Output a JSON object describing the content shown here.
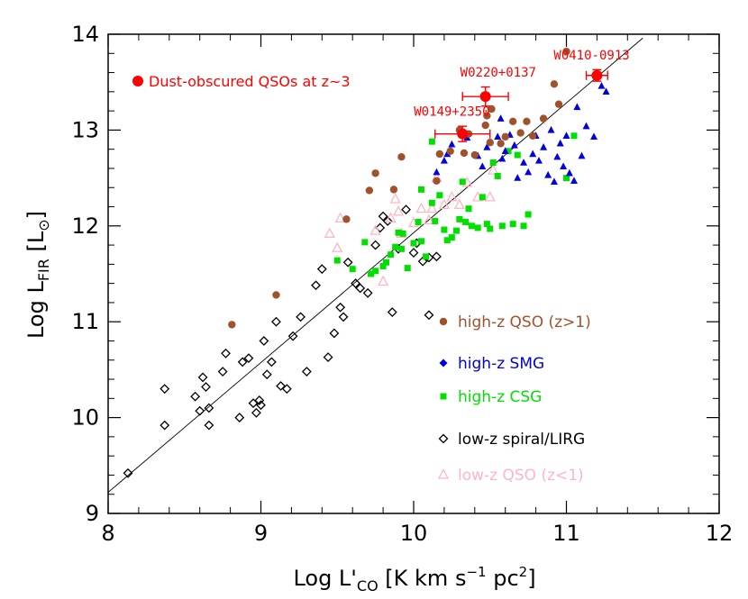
{
  "chart_data": {
    "type": "scatter",
    "xlabel": "Log L'CO [K km s-1 pc2]",
    "ylabel": "Log LFIR [L⊙]",
    "xlim": [
      8,
      12
    ],
    "ylim": [
      9,
      14
    ],
    "xticks": [
      8,
      9,
      10,
      11,
      12
    ],
    "yticks": [
      9,
      10,
      11,
      12,
      13,
      14
    ],
    "grid": false,
    "fit_line": {
      "x": [
        8,
        11.5
      ],
      "y": [
        9.22,
        13.96
      ]
    },
    "series": [
      {
        "name": "high-z QSO (z>1)",
        "marker": "circle",
        "color": "#a0522d",
        "points": [
          [
            8.81,
            10.97
          ],
          [
            9.1,
            11.28
          ],
          [
            9.56,
            12.07
          ],
          [
            9.71,
            12.37
          ],
          [
            9.75,
            12.55
          ],
          [
            9.87,
            12.38
          ],
          [
            9.92,
            12.72
          ],
          [
            10.15,
            12.47
          ],
          [
            10.17,
            12.75
          ],
          [
            10.24,
            12.78
          ],
          [
            10.3,
            13.0
          ],
          [
            10.33,
            12.76
          ],
          [
            10.36,
            12.96
          ],
          [
            10.4,
            12.74
          ],
          [
            10.47,
            13.05
          ],
          [
            10.48,
            13.15
          ],
          [
            10.5,
            12.87
          ],
          [
            10.51,
            13.22
          ],
          [
            10.57,
            12.86
          ],
          [
            10.6,
            12.93
          ],
          [
            10.65,
            13.09
          ],
          [
            10.7,
            12.97
          ],
          [
            10.74,
            13.09
          ],
          [
            10.78,
            12.94
          ],
          [
            10.85,
            13.12
          ],
          [
            10.92,
            13.48
          ],
          [
            10.95,
            13.27
          ],
          [
            11.0,
            13.82
          ],
          [
            11.2,
            13.55
          ]
        ]
      },
      {
        "name": "high-z SMG",
        "marker": "triangle",
        "color": "#0000e0",
        "points": [
          [
            10.15,
            12.56
          ],
          [
            10.2,
            12.68
          ],
          [
            10.22,
            12.75
          ],
          [
            10.25,
            12.85
          ],
          [
            10.35,
            12.92
          ],
          [
            10.42,
            12.73
          ],
          [
            10.45,
            12.62
          ],
          [
            10.48,
            12.82
          ],
          [
            10.55,
            12.93
          ],
          [
            10.58,
            12.7
          ],
          [
            10.6,
            12.78
          ],
          [
            10.63,
            12.95
          ],
          [
            10.66,
            12.84
          ],
          [
            10.68,
            12.5
          ],
          [
            10.72,
            12.66
          ],
          [
            10.75,
            12.56
          ],
          [
            10.78,
            12.75
          ],
          [
            10.8,
            12.94
          ],
          [
            10.82,
            12.68
          ],
          [
            10.85,
            12.82
          ],
          [
            10.88,
            12.53
          ],
          [
            10.9,
            13.0
          ],
          [
            10.92,
            12.46
          ],
          [
            10.94,
            12.72
          ],
          [
            10.96,
            12.86
          ],
          [
            10.98,
            12.62
          ],
          [
            11.0,
            12.94
          ],
          [
            11.02,
            12.55
          ],
          [
            11.05,
            12.47
          ],
          [
            11.07,
            13.24
          ],
          [
            11.1,
            12.73
          ],
          [
            11.13,
            13.04
          ],
          [
            11.18,
            12.93
          ],
          [
            11.23,
            13.46
          ],
          [
            11.26,
            13.4
          ],
          [
            10.57,
            13.12
          ]
        ]
      },
      {
        "name": "high-z CSG",
        "marker": "square",
        "color": "#00e000",
        "points": [
          [
            9.5,
            11.64
          ],
          [
            9.6,
            11.55
          ],
          [
            9.68,
            11.83
          ],
          [
            9.72,
            11.5
          ],
          [
            9.75,
            11.53
          ],
          [
            9.8,
            11.58
          ],
          [
            9.82,
            11.62
          ],
          [
            9.85,
            11.7
          ],
          [
            9.88,
            11.78
          ],
          [
            9.9,
            11.93
          ],
          [
            9.92,
            11.76
          ],
          [
            9.96,
            11.56
          ],
          [
            10.0,
            11.82
          ],
          [
            10.03,
            12.04
          ],
          [
            10.05,
            11.84
          ],
          [
            10.08,
            11.68
          ],
          [
            10.12,
            12.24
          ],
          [
            10.14,
            12.05
          ],
          [
            10.17,
            12.32
          ],
          [
            10.2,
            11.96
          ],
          [
            10.22,
            11.85
          ],
          [
            10.25,
            11.88
          ],
          [
            10.28,
            11.95
          ],
          [
            10.3,
            12.07
          ],
          [
            10.32,
            12.46
          ],
          [
            10.34,
            12.04
          ],
          [
            10.36,
            12.18
          ],
          [
            10.38,
            12.0
          ],
          [
            10.42,
            11.98
          ],
          [
            10.45,
            12.3
          ],
          [
            10.48,
            12.02
          ],
          [
            10.5,
            11.97
          ],
          [
            10.52,
            12.66
          ],
          [
            10.55,
            12.52
          ],
          [
            10.58,
            12.0
          ],
          [
            10.62,
            12.78
          ],
          [
            10.65,
            12.02
          ],
          [
            10.68,
            12.74
          ],
          [
            10.72,
            12.0
          ],
          [
            10.75,
            12.12
          ],
          [
            11.0,
            12.5
          ],
          [
            11.05,
            12.94
          ],
          [
            10.12,
            12.88
          ],
          [
            10.05,
            12.38
          ],
          [
            9.93,
            11.92
          ]
        ]
      },
      {
        "name": "low-z spiral/LIRG",
        "marker": "diamond",
        "color": "#000000",
        "points": [
          [
            8.13,
            9.42
          ],
          [
            8.37,
            9.92
          ],
          [
            8.37,
            10.3
          ],
          [
            8.57,
            10.22
          ],
          [
            8.6,
            10.07
          ],
          [
            8.62,
            10.42
          ],
          [
            8.64,
            10.32
          ],
          [
            8.66,
            10.1
          ],
          [
            8.66,
            9.92
          ],
          [
            8.75,
            10.48
          ],
          [
            8.77,
            10.67
          ],
          [
            8.86,
            10.0
          ],
          [
            8.88,
            10.58
          ],
          [
            8.92,
            10.62
          ],
          [
            8.95,
            10.15
          ],
          [
            8.97,
            10.05
          ],
          [
            8.99,
            10.18
          ],
          [
            9.0,
            10.13
          ],
          [
            9.02,
            10.8
          ],
          [
            9.04,
            10.45
          ],
          [
            9.07,
            10.58
          ],
          [
            9.1,
            11.0
          ],
          [
            9.13,
            10.33
          ],
          [
            9.17,
            10.3
          ],
          [
            9.21,
            10.85
          ],
          [
            9.26,
            11.05
          ],
          [
            9.3,
            10.48
          ],
          [
            9.36,
            11.38
          ],
          [
            9.4,
            11.55
          ],
          [
            9.44,
            10.63
          ],
          [
            9.48,
            10.88
          ],
          [
            9.52,
            11.15
          ],
          [
            9.54,
            11.05
          ],
          [
            9.57,
            11.62
          ],
          [
            9.62,
            11.4
          ],
          [
            9.65,
            11.35
          ],
          [
            9.7,
            11.3
          ],
          [
            9.75,
            11.8
          ],
          [
            9.78,
            11.98
          ],
          [
            9.8,
            12.1
          ],
          [
            9.83,
            12.05
          ],
          [
            9.86,
            11.1
          ],
          [
            9.9,
            11.76
          ],
          [
            9.95,
            12.17
          ],
          [
            10.0,
            11.72
          ],
          [
            10.02,
            11.82
          ],
          [
            10.06,
            11.63
          ],
          [
            10.1,
            11.07
          ],
          [
            10.1,
            11.67
          ],
          [
            10.15,
            11.68
          ]
        ]
      },
      {
        "name": "low-z QSO (z<1)",
        "marker": "triangle-open",
        "color": "#ffb6c1",
        "points": [
          [
            9.45,
            11.92
          ],
          [
            9.5,
            11.77
          ],
          [
            9.52,
            12.08
          ],
          [
            9.75,
            11.95
          ],
          [
            9.8,
            11.42
          ],
          [
            9.85,
            12.08
          ],
          [
            9.88,
            12.28
          ],
          [
            9.9,
            12.15
          ],
          [
            9.92,
            11.92
          ],
          [
            10.0,
            12.03
          ],
          [
            10.05,
            12.18
          ],
          [
            10.1,
            12.06
          ],
          [
            10.12,
            12.18
          ],
          [
            10.15,
            12.5
          ],
          [
            10.2,
            12.22
          ],
          [
            10.25,
            12.3
          ],
          [
            10.3,
            12.22
          ],
          [
            10.35,
            12.45
          ],
          [
            10.42,
            12.3
          ],
          [
            10.5,
            12.3
          ],
          [
            10.52,
            12.58
          ]
        ]
      },
      {
        "name": "Dust-obscured QSOs at z~3",
        "marker": "circle-large",
        "color": "#ff0000",
        "points": [
          [
            10.32,
            12.96
          ],
          [
            10.47,
            13.35
          ],
          [
            11.2,
            13.57
          ]
        ],
        "xerr": [
          [
            0.18,
            0.18
          ],
          [
            0.15,
            0.15
          ],
          [
            0.07,
            0.07
          ]
        ],
        "yerr": [
          [
            0.08,
            0.08
          ],
          [
            0.1,
            0.1
          ],
          [
            0.06,
            0.06
          ]
        ],
        "labels": [
          "W0149+2350",
          "W0220+0137",
          "W0410-0913"
        ]
      }
    ]
  }
}
